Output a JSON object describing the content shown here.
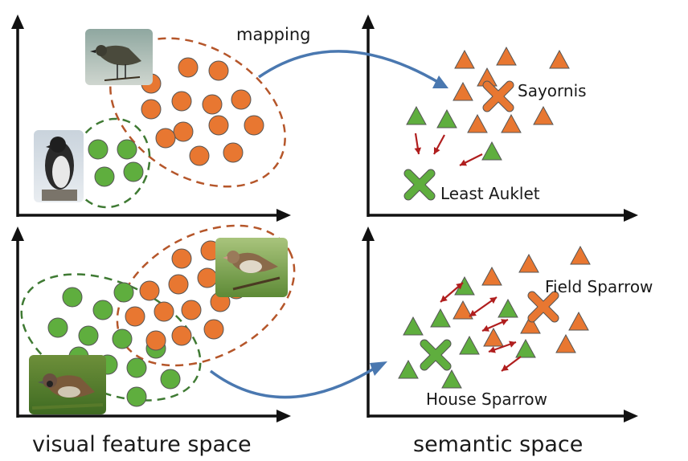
{
  "labels": {
    "mapping": "mapping",
    "sayornis": "Sayornis",
    "least_auklet": "Least Auklet",
    "field_sparrow": "Field Sparrow",
    "house_sparrow": "House Sparrow"
  },
  "captions": {
    "left": "visual feature space",
    "right": "semantic space"
  },
  "colors": {
    "orange": "#E87731",
    "green": "#5FAE3E",
    "mapping_arrow": "#4A78B0",
    "shift_arrow": "#B01E1E",
    "orange_dash": "#B5562A",
    "green_dash": "#3F7A33",
    "axis": "#111111"
  },
  "bird_photos": [
    {
      "name": "sayornis-photo-icon",
      "bird": "Sayornis"
    },
    {
      "name": "least-auklet-photo-icon",
      "bird": "Least Auklet"
    },
    {
      "name": "field-sparrow-photo-icon",
      "bird": "Field Sparrow"
    },
    {
      "name": "house-sparrow-photo-icon",
      "bird": "House Sparrow"
    }
  ]
}
